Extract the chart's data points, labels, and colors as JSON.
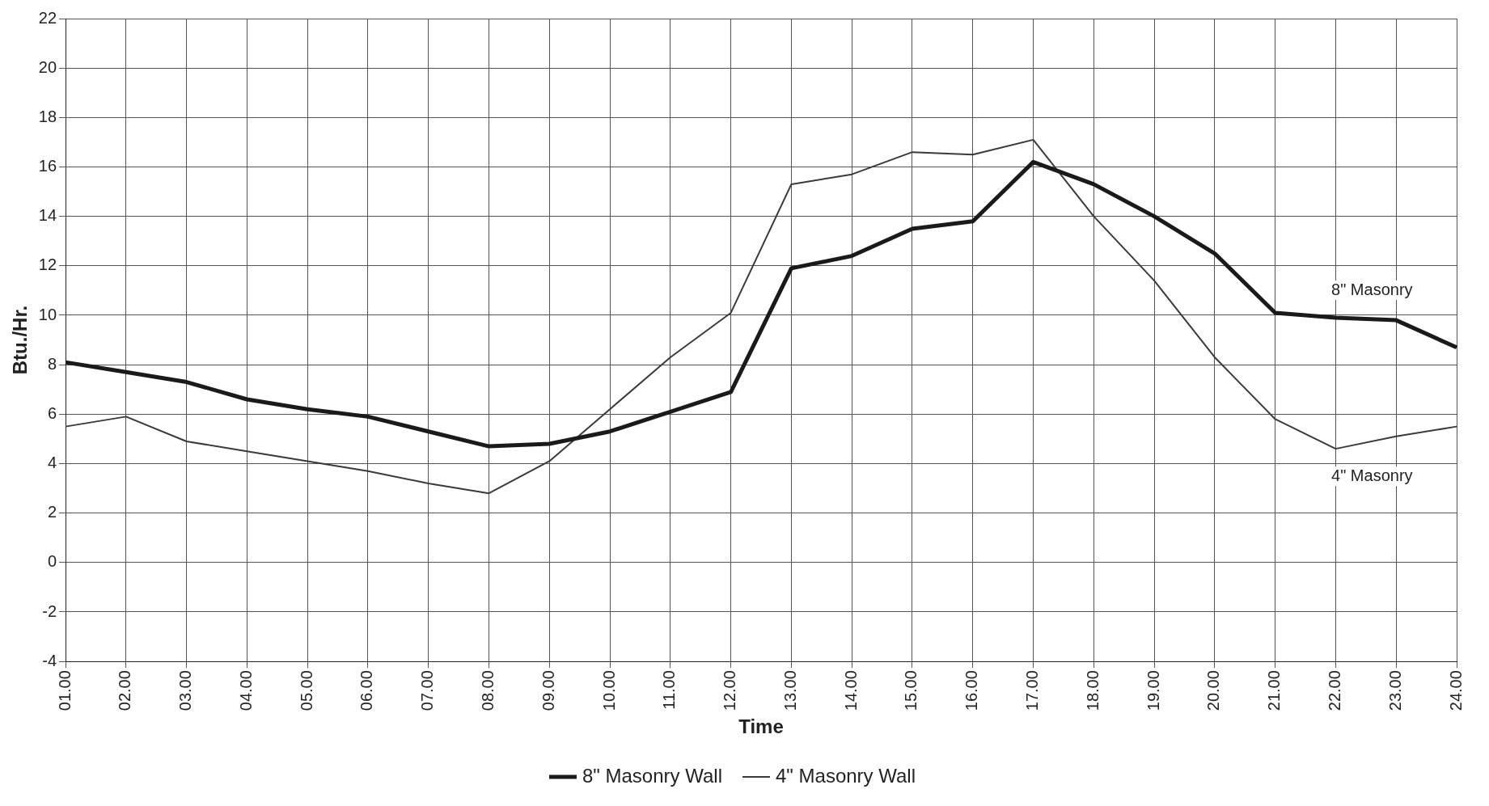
{
  "chart_data": {
    "type": "line",
    "xlabel": "Time",
    "ylabel": "Btu./Hr.",
    "categories": [
      "01.00",
      "02.00",
      "03.00",
      "04.00",
      "05.00",
      "06.00",
      "07.00",
      "08.00",
      "09.00",
      "10.00",
      "11.00",
      "12.00",
      "13.00",
      "14.00",
      "15.00",
      "16.00",
      "17.00",
      "18.00",
      "19.00",
      "20.00",
      "21.00",
      "22.00",
      "23.00",
      "24.00"
    ],
    "series": [
      {
        "name": "8\" Masonry Wall",
        "color": "#1a1a1a",
        "values": [
          8.1,
          7.7,
          7.3,
          6.6,
          6.2,
          5.9,
          5.3,
          4.7,
          4.8,
          5.3,
          6.1,
          6.9,
          11.9,
          12.4,
          13.5,
          13.8,
          16.2,
          15.3,
          14.0,
          12.5,
          10.1,
          9.9,
          9.8,
          8.7
        ]
      },
      {
        "name": "4\" Masonry Wall",
        "color": "#3a3a3a",
        "values": [
          5.5,
          5.9,
          4.9,
          4.5,
          4.1,
          3.7,
          3.2,
          2.8,
          4.1,
          6.2,
          8.3,
          10.1,
          15.3,
          15.7,
          16.6,
          16.5,
          17.1,
          14.0,
          11.4,
          8.3,
          5.8,
          4.6,
          5.1,
          5.5
        ]
      }
    ],
    "ylim": [
      -4,
      22
    ],
    "yticks": [
      -4,
      -2,
      0,
      2,
      4,
      6,
      8,
      10,
      12,
      14,
      16,
      18,
      20,
      22
    ],
    "annotations": [
      "8\" Masonry",
      "4\" Masonry"
    ],
    "grid": true,
    "legend": "bottom",
    "marker": "none",
    "line_style": "solid"
  }
}
